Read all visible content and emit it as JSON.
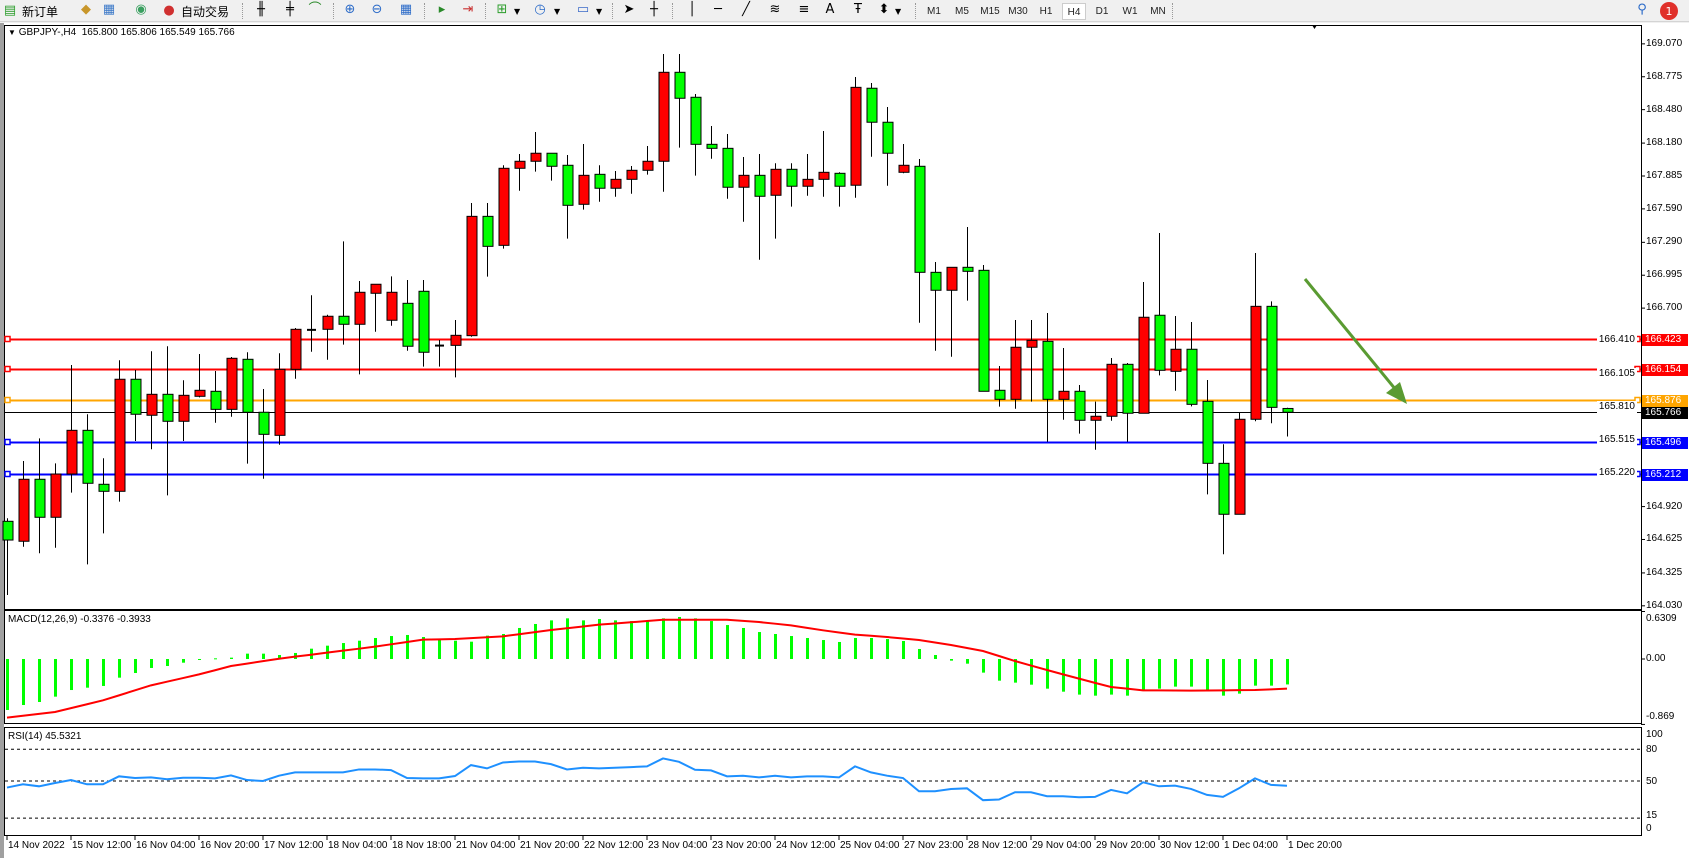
{
  "toolbar": {
    "new_order": "新订单",
    "auto_trade": "自动交易",
    "timeframes": [
      "M1",
      "M5",
      "M15",
      "M30",
      "H1",
      "H4",
      "D1",
      "W1",
      "MN"
    ],
    "active_timeframe": "H4",
    "notification_count": "1",
    "tools": [
      "new-order-icon",
      "meta-editor-icon",
      "market-watch-icon",
      "signals-icon",
      "auto-trading-icon",
      "bar-chart-icon",
      "candlestick-icon",
      "line-chart-icon",
      "zoom-in-icon",
      "zoom-out-icon",
      "tile-windows-icon",
      "chart-shift-icon",
      "auto-scroll-icon",
      "indicators-icon",
      "periods-icon",
      "templates-icon",
      "cursor-icon",
      "crosshair-icon",
      "vertical-line-icon",
      "horizontal-line-icon",
      "trendline-icon",
      "fibonacci-icon",
      "fibo-fan-icon",
      "text-icon",
      "text-label-icon",
      "arrows-icon",
      "search-icon",
      "notification-icon"
    ],
    "text_tool": "A"
  },
  "chart": {
    "symbol_timeframe": "GBPJPY-,H4",
    "ohlc_text": "165.800 165.806 165.549 165.766"
  },
  "colors": {
    "bull": "#ff0000",
    "bear": "#00ff00",
    "level_red": "#ff0000",
    "level_orange": "#ffa500",
    "level_blue": "#0000ff",
    "bid": "#000000",
    "rsi": "#1e90ff",
    "macd_hist": "#00ff00",
    "macd_signal": "#ff0000",
    "arrow": "#5a9b32"
  },
  "chart_data": [
    {
      "type": "candlestick",
      "ylim": [
        164.03,
        169.07
      ],
      "price_ticks": [
        "169.070",
        "168.775",
        "168.480",
        "168.180",
        "167.885",
        "167.590",
        "167.290",
        "166.995",
        "166.700",
        "166.410",
        "166.105",
        "165.810",
        "165.515",
        "165.220",
        "164.920",
        "164.625",
        "164.325",
        "164.030"
      ],
      "levels": [
        {
          "price": "166.423",
          "color": "#ff0000"
        },
        {
          "price": "166.154",
          "color": "#ff0000"
        },
        {
          "price": "165.876",
          "color": "#ffa500"
        },
        {
          "price": "165.496",
          "color": "#0000ff"
        },
        {
          "price": "165.212",
          "color": "#0000ff"
        }
      ],
      "bid": "165.766",
      "time_labels": [
        "14 Nov 2022",
        "15 Nov 12:00",
        "16 Nov 04:00",
        "16 Nov 20:00",
        "17 Nov 12:00",
        "18 Nov 04:00",
        "18 Nov 18:00",
        "21 Nov 04:00",
        "21 Nov 20:00",
        "22 Nov 12:00",
        "23 Nov 04:00",
        "23 Nov 20:00",
        "24 Nov 12:00",
        "25 Nov 04:00",
        "27 Nov 23:00",
        "28 Nov 12:00",
        "29 Nov 04:00",
        "29 Nov 20:00",
        "30 Nov 12:00",
        "1 Dec 04:00",
        "1 Dec 20:00"
      ],
      "ohlc": [
        [
          164.788,
          164.815,
          164.127,
          164.62
        ],
        [
          164.609,
          165.329,
          164.56,
          165.165
        ],
        [
          165.165,
          165.532,
          164.501,
          164.824
        ],
        [
          164.824,
          165.308,
          164.551,
          165.212
        ],
        [
          165.212,
          166.19,
          165.045,
          165.604
        ],
        [
          165.604,
          165.748,
          164.402,
          165.129
        ],
        [
          165.12,
          165.353,
          164.68,
          165.057
        ],
        [
          165.057,
          166.232,
          164.964,
          166.062
        ],
        [
          166.062,
          166.145,
          165.508,
          165.748
        ],
        [
          165.739,
          166.313,
          165.434,
          165.927
        ],
        [
          165.927,
          166.358,
          165.021,
          165.685
        ],
        [
          165.685,
          166.053,
          165.508,
          165.918
        ],
        [
          165.909,
          166.288,
          165.9,
          165.963
        ],
        [
          165.954,
          166.136,
          165.672,
          165.792
        ],
        [
          165.792,
          166.262,
          165.726,
          166.25
        ],
        [
          166.241,
          166.304,
          165.305,
          165.766
        ],
        [
          165.766,
          165.975,
          165.17,
          165.568
        ],
        [
          165.559,
          166.295,
          165.475,
          166.151
        ],
        [
          166.151,
          166.522,
          166.067,
          166.51
        ],
        [
          166.505,
          166.815,
          166.309,
          166.5
        ],
        [
          166.51,
          166.641,
          166.237,
          166.627
        ],
        [
          166.627,
          167.299,
          166.372,
          166.555
        ],
        [
          166.555,
          166.943,
          166.106,
          166.842
        ],
        [
          166.833,
          166.914,
          166.488,
          166.914
        ],
        [
          166.591,
          166.985,
          166.542,
          166.842
        ],
        [
          166.743,
          166.952,
          166.318,
          166.358
        ],
        [
          166.851,
          166.952,
          166.175,
          166.304
        ],
        [
          166.364,
          166.414,
          166.175,
          166.36
        ],
        [
          166.366,
          166.593,
          166.079,
          166.456
        ],
        [
          166.453,
          167.643,
          166.443,
          167.523
        ],
        [
          167.523,
          167.643,
          166.982,
          167.254
        ],
        [
          167.263,
          167.981,
          167.233,
          167.954
        ],
        [
          167.954,
          168.082,
          167.753,
          168.017
        ],
        [
          168.017,
          168.28,
          167.924,
          168.089
        ],
        [
          168.089,
          168.089,
          167.843,
          167.972
        ],
        [
          167.981,
          168.073,
          167.323,
          167.622
        ],
        [
          167.631,
          168.172,
          167.583,
          167.891
        ],
        [
          167.9,
          167.981,
          167.654,
          167.775
        ],
        [
          167.775,
          167.93,
          167.699,
          167.855
        ],
        [
          167.855,
          167.975,
          167.726,
          167.936
        ],
        [
          167.936,
          168.154,
          167.897,
          168.017
        ],
        [
          168.017,
          168.979,
          167.744,
          168.815
        ],
        [
          168.815,
          168.979,
          168.139,
          168.582
        ],
        [
          168.591,
          168.62,
          167.888,
          168.169
        ],
        [
          168.169,
          168.333,
          168.04,
          168.133
        ],
        [
          168.133,
          168.262,
          167.681,
          167.784
        ],
        [
          167.784,
          168.055,
          167.475,
          167.891
        ],
        [
          167.891,
          168.082,
          167.134,
          167.703
        ],
        [
          167.712,
          167.999,
          167.323,
          167.945
        ],
        [
          167.945,
          167.999,
          167.61,
          167.793
        ],
        [
          167.793,
          168.082,
          167.708,
          167.855
        ],
        [
          167.855,
          168.289,
          167.699,
          167.918
        ],
        [
          167.909,
          167.918,
          167.61,
          167.793
        ],
        [
          167.802,
          168.773,
          167.69,
          168.68
        ],
        [
          168.672,
          168.719,
          168.058,
          168.367
        ],
        [
          168.367,
          168.504,
          167.798,
          168.089
        ],
        [
          167.918,
          168.172,
          167.909,
          167.981
        ],
        [
          167.972,
          168.037,
          166.569,
          167.021
        ],
        [
          167.021,
          167.114,
          166.318,
          166.86
        ],
        [
          166.86,
          167.066,
          166.264,
          167.066
        ],
        [
          167.066,
          167.428,
          166.767,
          167.03
        ],
        [
          167.039,
          167.087,
          165.954,
          165.954
        ],
        [
          165.963,
          166.181,
          165.816,
          165.882
        ],
        [
          165.882,
          166.593,
          165.798,
          166.349
        ],
        [
          166.349,
          166.593,
          165.861,
          166.411
        ],
        [
          166.402,
          166.656,
          165.502,
          165.882
        ],
        [
          165.882,
          166.342,
          165.699,
          165.954
        ],
        [
          165.954,
          166.01,
          165.574,
          165.694
        ],
        [
          165.694,
          165.861,
          165.43,
          165.73
        ],
        [
          165.73,
          166.253,
          165.69,
          166.196
        ],
        [
          166.196,
          166.208,
          165.502,
          165.757
        ],
        [
          165.757,
          166.934,
          165.757,
          166.618
        ],
        [
          166.636,
          167.374,
          166.097,
          166.142
        ],
        [
          166.133,
          166.629,
          165.959,
          166.331
        ],
        [
          166.331,
          166.575,
          165.819,
          165.837
        ],
        [
          165.864,
          166.055,
          165.03,
          165.308
        ],
        [
          165.308,
          165.479,
          164.492,
          164.851
        ],
        [
          164.851,
          165.766,
          164.851,
          165.703
        ],
        [
          165.703,
          167.194,
          165.685,
          166.716
        ],
        [
          166.716,
          166.761,
          165.667,
          165.81
        ],
        [
          165.8,
          165.806,
          165.549,
          165.766
        ]
      ]
    },
    {
      "type": "bar",
      "label": "MACD(12,26,9) -0.3376 -0.3933",
      "ylim": [
        -0.869,
        0.6309
      ],
      "axis_labels": [
        "0.6309",
        "0.00",
        "-0.869"
      ],
      "histogram": [
        -0.677,
        -0.611,
        -0.571,
        -0.5,
        -0.412,
        -0.381,
        -0.358,
        -0.248,
        -0.186,
        -0.119,
        -0.093,
        -0.049,
        -0.004,
        0.009,
        0.018,
        0.071,
        0.071,
        0.053,
        0.08,
        0.137,
        0.177,
        0.212,
        0.243,
        0.279,
        0.305,
        0.319,
        0.292,
        0.261,
        0.243,
        0.23,
        0.31,
        0.332,
        0.412,
        0.465,
        0.513,
        0.54,
        0.513,
        0.531,
        0.513,
        0.504,
        0.504,
        0.54,
        0.558,
        0.54,
        0.504,
        0.451,
        0.412,
        0.358,
        0.332,
        0.305,
        0.279,
        0.252,
        0.226,
        0.279,
        0.279,
        0.265,
        0.239,
        0.133,
        0.053,
        -0.022,
        -0.062,
        -0.181,
        -0.288,
        -0.314,
        -0.341,
        -0.394,
        -0.434,
        -0.473,
        -0.487,
        -0.473,
        -0.487,
        -0.42,
        -0.394,
        -0.367,
        -0.367,
        -0.407,
        -0.487,
        -0.46,
        -0.354,
        -0.354,
        -0.3376
      ],
      "signal": [
        -0.779,
        -0.754,
        -0.729,
        -0.704,
        -0.652,
        -0.601,
        -0.549,
        -0.483,
        -0.416,
        -0.35,
        -0.301,
        -0.253,
        -0.204,
        -0.149,
        -0.093,
        -0.061,
        -0.028,
        0.004,
        0.031,
        0.057,
        0.084,
        0.111,
        0.137,
        0.164,
        0.195,
        0.226,
        0.257,
        0.261,
        0.265,
        0.277,
        0.289,
        0.301,
        0.329,
        0.357,
        0.385,
        0.409,
        0.432,
        0.456,
        0.472,
        0.488,
        0.504,
        0.522,
        0.522,
        0.522,
        0.522,
        0.522,
        0.507,
        0.491,
        0.469,
        0.447,
        0.414,
        0.381,
        0.352,
        0.323,
        0.308,
        0.292,
        0.272,
        0.252,
        0.219,
        0.186,
        0.146,
        0.106,
        0.04,
        -0.027,
        -0.087,
        -0.146,
        -0.204,
        -0.261,
        -0.317,
        -0.372,
        -0.394,
        -0.416,
        -0.417,
        -0.419,
        -0.42,
        -0.418,
        -0.416,
        -0.414,
        -0.412,
        -0.403,
        -0.3933
      ]
    },
    {
      "type": "line",
      "label": "RSI(14) 45.5321",
      "ylim": [
        0,
        100
      ],
      "axis_labels": [
        "100",
        "80",
        "50",
        "15",
        "0"
      ],
      "levels": [
        80,
        50,
        15
      ],
      "values": [
        43.8,
        46.9,
        45.0,
        48.1,
        50.9,
        46.9,
        46.9,
        54.4,
        52.8,
        53.4,
        51.6,
        53.1,
        53.1,
        52.5,
        55.3,
        50.9,
        50.0,
        55.0,
        58.1,
        58.1,
        58.1,
        58.1,
        60.9,
        60.9,
        60.3,
        52.8,
        52.5,
        52.5,
        54.7,
        65.0,
        61.9,
        67.5,
        68.4,
        68.4,
        65.9,
        60.9,
        62.5,
        61.9,
        62.5,
        63.1,
        63.8,
        71.3,
        68.1,
        60.6,
        60.0,
        54.4,
        55.0,
        53.4,
        55.0,
        53.4,
        54.4,
        54.4,
        53.4,
        63.8,
        58.1,
        55.0,
        52.8,
        40.3,
        40.3,
        42.5,
        43.1,
        31.9,
        32.5,
        39.4,
        39.4,
        35.6,
        35.6,
        34.7,
        35.0,
        41.6,
        38.4,
        48.8,
        45.0,
        45.6,
        42.5,
        36.9,
        35.0,
        43.1,
        52.5,
        46.3,
        45.5321
      ]
    }
  ]
}
